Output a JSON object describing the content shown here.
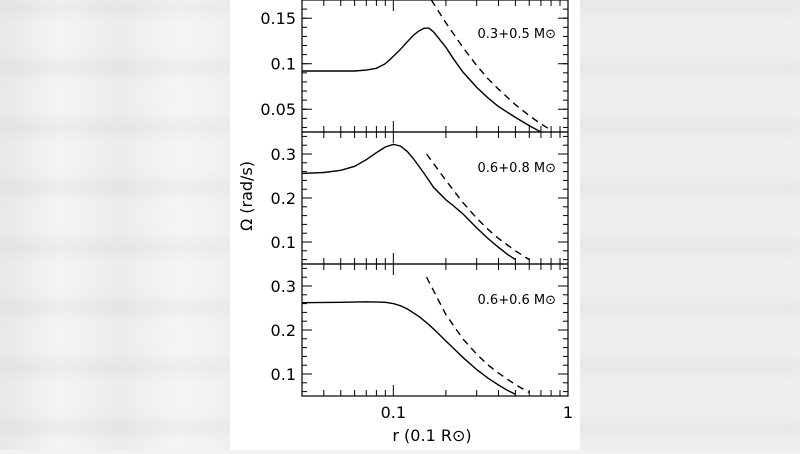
{
  "chart_data": {
    "type": "line",
    "xscale": "log",
    "xlim": [
      0.03,
      1
    ],
    "xlabel": "r (0.1 R⊙)",
    "ylabel": "Ω (rad/s)",
    "x_tick_labels": [
      "0.1",
      "1"
    ],
    "panels": [
      {
        "label": "0.3+0.5 M⊙",
        "ylim": [
          0.025,
          0.17
        ],
        "yticks": [
          0.05,
          0.1,
          0.15
        ],
        "ytick_labels": [
          "0.05",
          "0.1",
          "0.15"
        ],
        "series": [
          {
            "name": "solid",
            "style": "solid",
            "x": [
              0.03,
              0.05,
              0.06,
              0.07,
              0.08,
              0.09,
              0.1,
              0.11,
              0.12,
              0.13,
              0.14,
              0.15,
              0.16,
              0.17,
              0.18,
              0.2,
              0.22,
              0.25,
              0.3,
              0.35,
              0.4,
              0.5,
              0.6,
              0.7
            ],
            "y": [
              0.092,
              0.092,
              0.092,
              0.093,
              0.095,
              0.1,
              0.108,
              0.116,
              0.124,
              0.131,
              0.136,
              0.139,
              0.139,
              0.135,
              0.129,
              0.118,
              0.106,
              0.091,
              0.074,
              0.062,
              0.053,
              0.041,
              0.032,
              0.025
            ]
          },
          {
            "name": "dashed",
            "style": "dashed",
            "x": [
              0.165,
              0.2,
              0.25,
              0.3,
              0.35,
              0.4,
              0.5,
              0.6,
              0.7,
              0.8
            ],
            "y": [
              0.17,
              0.145,
              0.118,
              0.098,
              0.083,
              0.072,
              0.055,
              0.043,
              0.034,
              0.027
            ]
          }
        ]
      },
      {
        "label": "0.6+0.8 M⊙",
        "ylim": [
          0.05,
          0.35
        ],
        "yticks": [
          0.1,
          0.2,
          0.3
        ],
        "ytick_labels": [
          "0.1",
          "0.2",
          "0.3"
        ],
        "series": [
          {
            "name": "solid",
            "style": "solid",
            "x": [
              0.03,
              0.04,
              0.05,
              0.06,
              0.07,
              0.08,
              0.09,
              0.1,
              0.11,
              0.12,
              0.13,
              0.15,
              0.17,
              0.2,
              0.22,
              0.25,
              0.3,
              0.35,
              0.4,
              0.45,
              0.5
            ],
            "y": [
              0.256,
              0.258,
              0.263,
              0.272,
              0.287,
              0.303,
              0.316,
              0.322,
              0.318,
              0.306,
              0.29,
              0.256,
              0.224,
              0.196,
              0.183,
              0.164,
              0.132,
              0.107,
              0.088,
              0.072,
              0.06
            ]
          },
          {
            "name": "dashed",
            "style": "dashed",
            "x": [
              0.155,
              0.2,
              0.25,
              0.3,
              0.35,
              0.4,
              0.5,
              0.6
            ],
            "y": [
              0.3,
              0.24,
              0.19,
              0.154,
              0.128,
              0.108,
              0.08,
              0.06
            ]
          }
        ]
      },
      {
        "label": "0.6+0.6 M⊙",
        "ylim": [
          0.05,
          0.35
        ],
        "yticks": [
          0.1,
          0.2,
          0.3
        ],
        "ytick_labels": [
          "0.1",
          "0.2",
          "0.3"
        ],
        "series": [
          {
            "name": "solid",
            "style": "solid",
            "x": [
              0.03,
              0.05,
              0.07,
              0.09,
              0.1,
              0.11,
              0.12,
              0.14,
              0.16,
              0.18,
              0.2,
              0.25,
              0.3,
              0.35,
              0.4,
              0.45,
              0.5
            ],
            "y": [
              0.262,
              0.263,
              0.264,
              0.263,
              0.26,
              0.255,
              0.248,
              0.231,
              0.212,
              0.193,
              0.175,
              0.138,
              0.11,
              0.09,
              0.075,
              0.063,
              0.054
            ]
          },
          {
            "name": "dashed",
            "style": "dashed",
            "x": [
              0.155,
              0.2,
              0.25,
              0.3,
              0.35,
              0.4,
              0.5,
              0.6
            ],
            "y": [
              0.32,
              0.235,
              0.18,
              0.145,
              0.12,
              0.102,
              0.076,
              0.058
            ]
          }
        ]
      }
    ]
  }
}
